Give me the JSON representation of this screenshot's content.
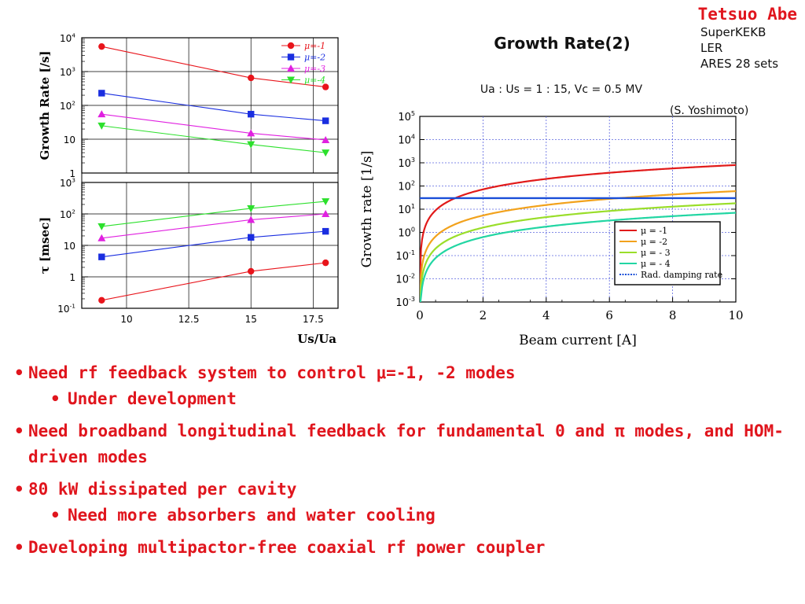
{
  "author": "Tetsuo Abe",
  "colors": {
    "accent": "#e0151d"
  },
  "chart_data": [
    {
      "type": "line",
      "panels": [
        {
          "ylabel": "Growth Rate  [/s]",
          "scale": "log",
          "ylim": [
            1,
            10000
          ],
          "y_ticks": [
            {
              "base": "10",
              "exp": "4"
            },
            {
              "base": "10",
              "exp": "3"
            },
            {
              "base": "10",
              "exp": "2"
            },
            {
              "base": "10",
              "exp": ""
            },
            {
              "base": "1",
              "exp": ""
            }
          ],
          "series": [
            {
              "name": "μ=-1",
              "color": "#e8141b",
              "marker": "circle",
              "x": [
                9,
                15,
                18
              ],
              "y": [
                5500,
                650,
                350
              ]
            },
            {
              "name": "μ=-2",
              "color": "#1a2ee0",
              "marker": "square",
              "x": [
                9,
                15,
                18
              ],
              "y": [
                230,
                55,
                35
              ]
            },
            {
              "name": "μ=-3",
              "color": "#e020e0",
              "marker": "triangle",
              "x": [
                9,
                15,
                18
              ],
              "y": [
                55,
                15,
                9.5
              ]
            },
            {
              "name": "μ=-4",
              "color": "#2ce02c",
              "marker": "tridown",
              "x": [
                9,
                15,
                18
              ],
              "y": [
                25,
                7,
                4
              ]
            }
          ]
        },
        {
          "ylabel": "τ  [msec]",
          "scale": "log",
          "ylim": [
            0.1,
            1000
          ],
          "y_ticks": [
            {
              "base": "10",
              "exp": "3"
            },
            {
              "base": "10",
              "exp": "2"
            },
            {
              "base": "10",
              "exp": ""
            },
            {
              "base": "1",
              "exp": ""
            },
            {
              "base": "10",
              "exp": "-1"
            }
          ],
          "series": [
            {
              "name": "μ=-1",
              "color": "#e8141b",
              "marker": "circle",
              "x": [
                9,
                15,
                18
              ],
              "y": [
                0.18,
                1.5,
                2.8
              ]
            },
            {
              "name": "μ=-2",
              "color": "#1a2ee0",
              "marker": "square",
              "x": [
                9,
                15,
                18
              ],
              "y": [
                4.3,
                18,
                28
              ]
            },
            {
              "name": "μ=-3",
              "color": "#e020e0",
              "marker": "triangle",
              "x": [
                9,
                15,
                18
              ],
              "y": [
                17,
                65,
                100
              ]
            },
            {
              "name": "μ=-4",
              "color": "#2ce02c",
              "marker": "tridown",
              "x": [
                9,
                15,
                18
              ],
              "y": [
                40,
                150,
                250
              ]
            }
          ]
        }
      ],
      "xlabel": "Us/Ua",
      "xlim": [
        8.2,
        18.5
      ],
      "x_ticks": [
        "10",
        "12.5",
        "15",
        "17.5"
      ],
      "legend": [
        "μ=-1",
        "μ=-2",
        "μ=-3",
        "μ=-4"
      ],
      "grid": true
    },
    {
      "type": "line",
      "title": "Growth Rate(2)",
      "subtitle": "Ua : Us = 1 : 15, Vc = 0.5 MV",
      "note_lines": [
        "SuperKEKB",
        "LER",
        "ARES 28 sets"
      ],
      "credit": "(S. Yoshimoto)",
      "xlabel": "Beam current [A]",
      "ylabel": "Growth rate [1/s]",
      "xlim": [
        0,
        10
      ],
      "ylim": [
        0.001,
        100000
      ],
      "scale_y": "log",
      "x_ticks": [
        "0",
        "2",
        "4",
        "6",
        "8",
        "10"
      ],
      "y_ticks": [
        {
          "base": "10",
          "exp": "5"
        },
        {
          "base": "10",
          "exp": "4"
        },
        {
          "base": "10",
          "exp": "3"
        },
        {
          "base": "10",
          "exp": "2"
        },
        {
          "base": "10",
          "exp": "1"
        },
        {
          "base": "10",
          "exp": "0"
        },
        {
          "base": "10",
          "exp": "-1"
        },
        {
          "base": "10",
          "exp": "-2"
        },
        {
          "base": "10",
          "exp": "-3"
        }
      ],
      "grid": true,
      "legend_position": "bottom-right",
      "series": [
        {
          "name": "μ = -1",
          "color": "#e11a1a",
          "style": "curve",
          "value_at_10A": 800
        },
        {
          "name": "μ = -2",
          "color": "#f2a21c",
          "style": "curve",
          "value_at_10A": 60
        },
        {
          "name": "μ = - 3",
          "color": "#9ade2a",
          "style": "curve",
          "value_at_10A": 18
        },
        {
          "name": "μ = - 4",
          "color": "#22d6a3",
          "style": "curve",
          "value_at_10A": 7
        },
        {
          "name": "Rad. damping rate",
          "color": "#1a4fd8",
          "style": "dotted",
          "value": 30
        }
      ]
    }
  ],
  "bullets": [
    {
      "text": "Need rf feedback system to control μ=-1, -2 modes",
      "sub": [
        "Under development"
      ]
    },
    {
      "text": "Need broadband longitudinal feedback for fundamental 0 and π modes, and HOM-driven modes",
      "sub": []
    },
    {
      "text": "80 kW dissipated per cavity",
      "sub": [
        "Need more absorbers and water cooling"
      ]
    },
    {
      "text": "Developing multipactor-free coaxial rf power coupler",
      "sub": []
    }
  ]
}
